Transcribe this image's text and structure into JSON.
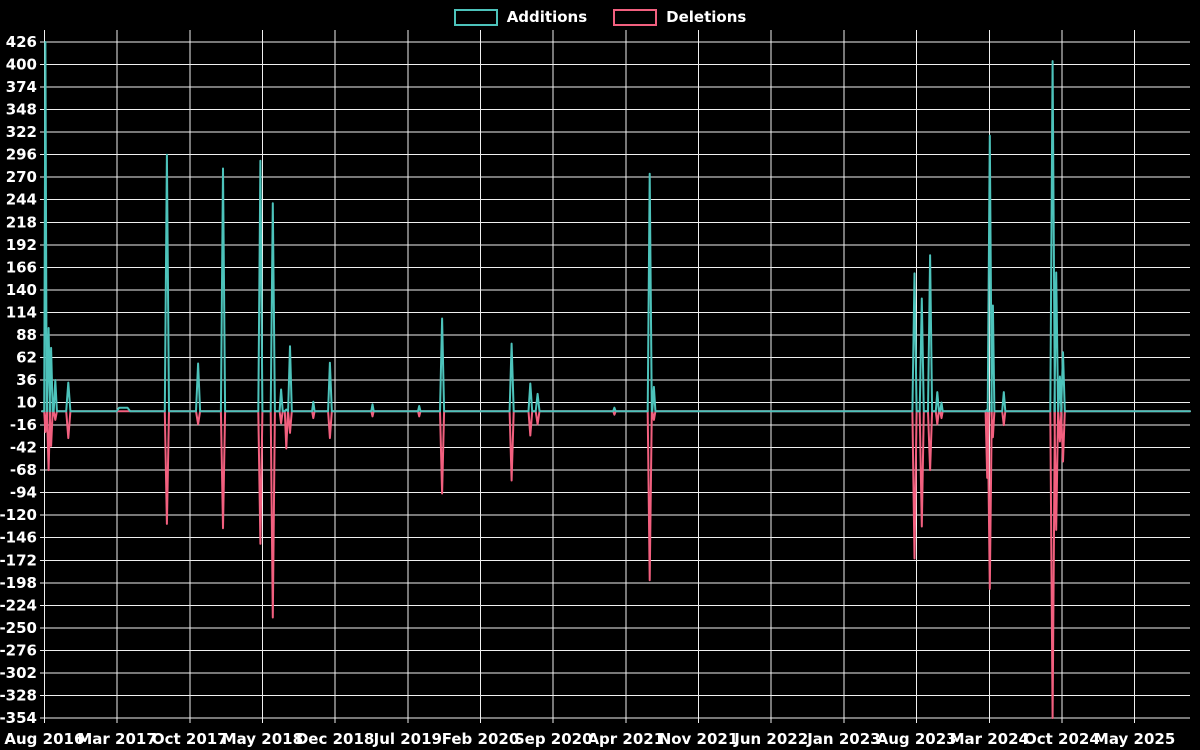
{
  "legend": {
    "additions": "Additions",
    "deletions": "Deletions"
  },
  "chart_data": {
    "type": "line",
    "title": "",
    "xlabel": "",
    "ylabel": "",
    "background": "#000000",
    "label_color": "#ffffff",
    "grid": true,
    "legend_position": "top-center",
    "series": [
      {
        "name": "Additions",
        "color": "#4dc3bb"
      },
      {
        "name": "Deletions",
        "color": "#f2607f"
      }
    ],
    "y_axis": {
      "max": 426,
      "min": -354,
      "step": 26,
      "ticks": [
        426,
        400,
        374,
        348,
        322,
        296,
        270,
        244,
        218,
        192,
        166,
        140,
        114,
        88,
        62,
        36,
        10,
        -16,
        -42,
        -68,
        -94,
        -120,
        -146,
        -172,
        -198,
        -224,
        -250,
        -276,
        -302,
        -328,
        -354
      ]
    },
    "x_axis": {
      "unit": "months-since-first-tick",
      "tick_months": [
        0,
        7,
        14,
        21,
        28,
        35,
        42,
        49,
        56,
        63,
        70,
        77,
        84,
        91,
        98,
        105
      ],
      "tick_labels": [
        "Aug 2016",
        "Mar 2017",
        "Oct 2017",
        "May 2018",
        "Dec 2018",
        "Jul 2019",
        "Feb 2020",
        "Sep 2020",
        "Apr 2021",
        "Nov 2021",
        "Jun 2022",
        "Jan 2023",
        "Aug 2023",
        "Mar 2024",
        "Oct 2024",
        "May 2025"
      ],
      "domain_end_month": 110.3
    },
    "baseline_value": 0,
    "events": [
      {
        "m": 0.1,
        "add": 426,
        "del": -24,
        "w": 0.12
      },
      {
        "m": 0.4,
        "add": 96,
        "del": -68,
        "w": 0.15
      },
      {
        "m": 0.65,
        "add": 73,
        "del": -40,
        "w": 0.15
      },
      {
        "m": 1.05,
        "add": 36,
        "del": -10,
        "w": 0.15
      },
      {
        "m": 2.3,
        "add": 33,
        "del": -31,
        "w": 0.2
      },
      {
        "m": 7.2,
        "m2": 8.0,
        "add": 4,
        "del": 0,
        "w": 0.25
      },
      {
        "m": 11.8,
        "add": 296,
        "del": -130,
        "w": 0.2
      },
      {
        "m": 14.8,
        "add": 55,
        "del": -15,
        "w": 0.2
      },
      {
        "m": 17.2,
        "add": 280,
        "del": -135,
        "w": 0.2
      },
      {
        "m": 20.8,
        "add": 289,
        "del": -153,
        "w": 0.2
      },
      {
        "m": 22.0,
        "add": 240,
        "del": -238,
        "w": 0.2
      },
      {
        "m": 22.8,
        "add": 25,
        "del": -14,
        "w": 0.15
      },
      {
        "m": 23.3,
        "add": 2,
        "del": -43,
        "w": 0.15
      },
      {
        "m": 23.65,
        "add": 75,
        "del": -25,
        "w": 0.18
      },
      {
        "m": 25.9,
        "add": 11,
        "del": -8,
        "w": 0.12
      },
      {
        "m": 27.5,
        "add": 56,
        "del": -31,
        "w": 0.18
      },
      {
        "m": 31.6,
        "add": 8,
        "del": -6,
        "w": 0.12
      },
      {
        "m": 36.1,
        "add": 6,
        "del": -6,
        "w": 0.12
      },
      {
        "m": 38.3,
        "add": 107,
        "del": -95,
        "w": 0.2
      },
      {
        "m": 45.0,
        "add": 78,
        "del": -80,
        "w": 0.2
      },
      {
        "m": 46.8,
        "add": 32,
        "del": -28,
        "w": 0.18
      },
      {
        "m": 47.5,
        "add": 20,
        "del": -15,
        "w": 0.18
      },
      {
        "m": 54.9,
        "add": 4,
        "del": -4,
        "w": 0.12
      },
      {
        "m": 58.3,
        "add": 274,
        "del": -195,
        "w": 0.2
      },
      {
        "m": 58.7,
        "add": 28,
        "del": -10,
        "w": 0.15
      },
      {
        "m": 83.8,
        "add": 159,
        "del": -170,
        "w": 0.2
      },
      {
        "m": 84.5,
        "add": 130,
        "del": -133,
        "w": 0.2
      },
      {
        "m": 85.3,
        "add": 180,
        "del": -68,
        "w": 0.2
      },
      {
        "m": 86.0,
        "add": 22,
        "del": -15,
        "w": 0.15
      },
      {
        "m": 86.4,
        "add": 10,
        "del": -8,
        "w": 0.12
      },
      {
        "m": 90.8,
        "add": 2,
        "del": -77,
        "w": 0.15
      },
      {
        "m": 91.05,
        "add": 318,
        "del": -205,
        "w": 0.2
      },
      {
        "m": 91.35,
        "add": 122,
        "del": -30,
        "w": 0.15
      },
      {
        "m": 92.4,
        "add": 22,
        "del": -16,
        "w": 0.15
      },
      {
        "m": 97.1,
        "add": 404,
        "del": -354,
        "w": 0.22
      },
      {
        "m": 97.45,
        "add": 160,
        "del": -137,
        "w": 0.18
      },
      {
        "m": 97.8,
        "add": 40,
        "del": -35,
        "w": 0.15
      },
      {
        "m": 98.1,
        "add": 68,
        "del": -58,
        "w": 0.18
      }
    ]
  }
}
